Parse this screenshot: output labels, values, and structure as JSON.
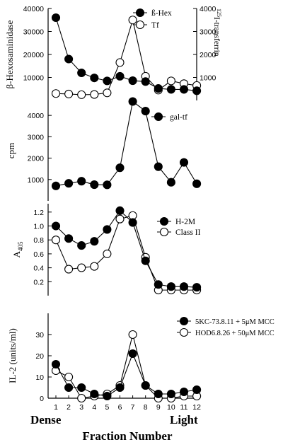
{
  "chart_data": [
    {
      "type": "line",
      "y_axis_left_label": "β-Hexosaminidase",
      "y_axis_right_label_sup": "125",
      "y_axis_right_label": "I-transferrin",
      "ylim_left": [
        0,
        40000
      ],
      "yticks_left": [
        "10000",
        "20000",
        "30000",
        "40000"
      ],
      "ylim_right": [
        0,
        4000
      ],
      "yticks_right": [
        "1000",
        "2000",
        "3000",
        "4000"
      ],
      "legend_position": "top-right",
      "series": [
        {
          "name": "ß-Hex",
          "marker": "filled",
          "axis": "left",
          "values": [
            36000,
            18000,
            12000,
            9800,
            8500,
            10500,
            8600,
            8200,
            5200,
            4800,
            4800,
            4200
          ]
        },
        {
          "name": "Tf",
          "marker": "open",
          "axis": "right",
          "values": [
            300,
            280,
            250,
            260,
            330,
            1650,
            3500,
            1050,
            450,
            850,
            730,
            650
          ]
        }
      ]
    },
    {
      "type": "line",
      "y_axis_left_label": "cpm",
      "ylim": [
        0,
        4500
      ],
      "yticks": [
        "1000",
        "2000",
        "3000",
        "4000"
      ],
      "legend_position": "top-right",
      "series": [
        {
          "name": "gal-tf",
          "marker": "filled",
          "values": [
            700,
            820,
            920,
            760,
            750,
            1550,
            4650,
            4200,
            1600,
            870,
            1800,
            800
          ]
        }
      ]
    },
    {
      "type": "line",
      "y_axis_left_label": "A",
      "y_axis_left_label_sub": "405",
      "ylim": [
        0,
        1.3
      ],
      "yticks": [
        "0.2",
        "0.4",
        "0.6",
        "0.8",
        "1.0",
        "1.2"
      ],
      "legend_position": "top-right",
      "series": [
        {
          "name": "H-2M",
          "marker": "filled",
          "values": [
            1.0,
            0.82,
            0.72,
            0.78,
            0.95,
            1.22,
            1.05,
            0.5,
            0.16,
            0.13,
            0.13,
            0.12
          ]
        },
        {
          "name": "Class II",
          "marker": "open",
          "values": [
            0.8,
            0.38,
            0.4,
            0.42,
            0.6,
            1.1,
            1.15,
            0.55,
            0.08,
            0.08,
            0.08,
            0.08
          ]
        }
      ]
    },
    {
      "type": "line",
      "y_axis_left_label": "IL-2 (units/ml)",
      "ylim": [
        0,
        40
      ],
      "yticks": [
        "0",
        "10",
        "20",
        "30"
      ],
      "legend_position": "top-right",
      "series": [
        {
          "name": "5KC-73.8.11 + 5μM MCC",
          "marker": "filled",
          "values": [
            16,
            5,
            5,
            2,
            1,
            5,
            21,
            6,
            2,
            2,
            3,
            4
          ]
        },
        {
          "name": "HOD6.8.26 + 50μM MCC",
          "marker": "open",
          "values": [
            13,
            10,
            0,
            1,
            2,
            6,
            30,
            6,
            0,
            0,
            1,
            1
          ]
        }
      ]
    }
  ],
  "x_axis": {
    "ticks": [
      "1",
      "2",
      "3",
      "4",
      "5",
      "6",
      "7",
      "8",
      "9",
      "10",
      "11",
      "12"
    ],
    "left_label": "Dense",
    "right_label": "Light",
    "title": "Fraction Number"
  }
}
